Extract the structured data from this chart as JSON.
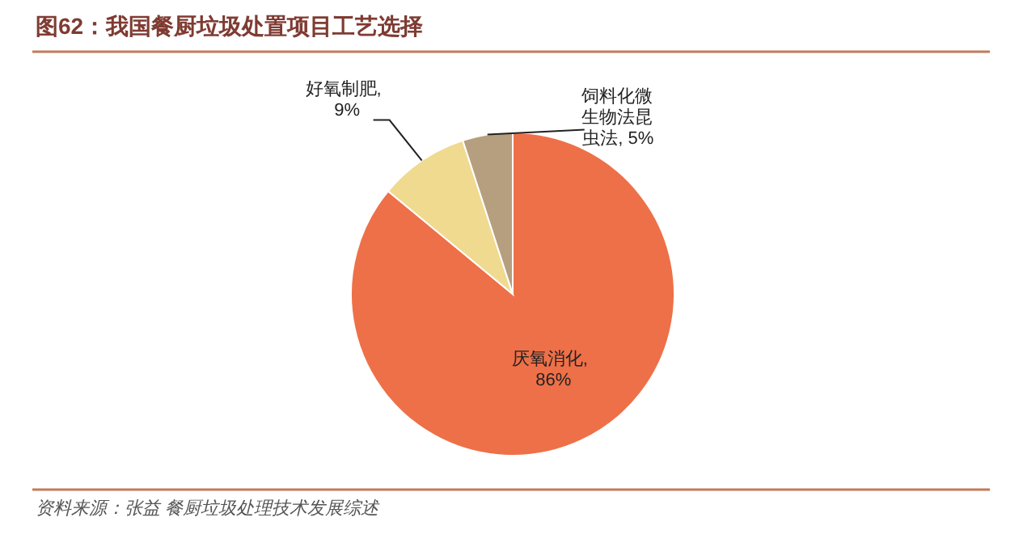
{
  "chart_data": {
    "type": "pie",
    "title": "图62：我国餐厨垃圾处置项目工艺选择",
    "categories": [
      "厌氧消化",
      "好氧制肥",
      "饲料化微生物法昆虫法"
    ],
    "values": [
      86,
      9,
      5
    ],
    "colors": [
      "#ee7048",
      "#f0da90",
      "#b59f7e"
    ],
    "value_labels": [
      ", 86%",
      ", 9%",
      ", 5%"
    ],
    "annotations": [
      "资料来源：张益 餐厨垃圾处理技术发展综述"
    ]
  }
}
